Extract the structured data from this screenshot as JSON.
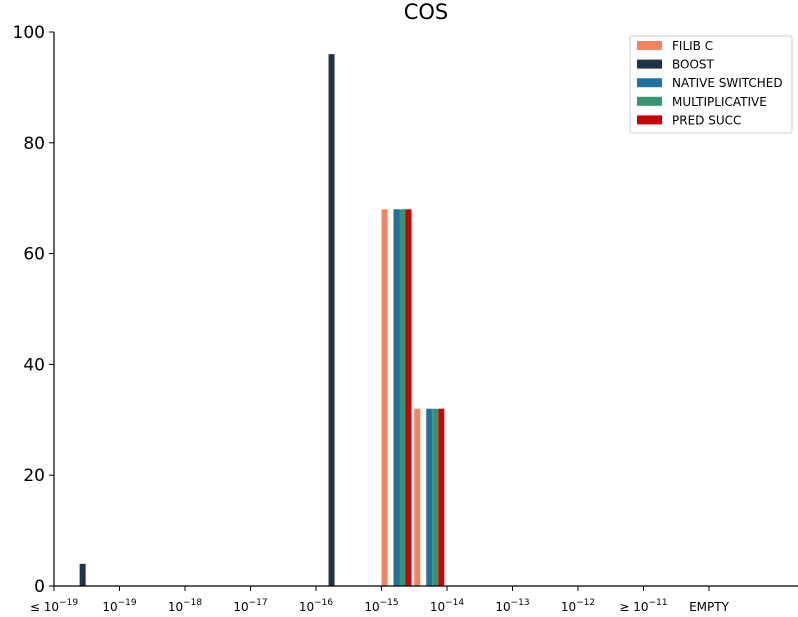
{
  "chart_data": {
    "type": "bar",
    "title": "COS",
    "xlabel": "",
    "ylabel": "",
    "ylim": [
      0,
      100
    ],
    "yticks": [
      0,
      20,
      40,
      60,
      80,
      100
    ],
    "categories": [
      {
        "prefix": "≤ 10",
        "sup": "−19"
      },
      {
        "prefix": "10",
        "sup": "−19"
      },
      {
        "prefix": "10",
        "sup": "−18"
      },
      {
        "prefix": "10",
        "sup": "−17"
      },
      {
        "prefix": "10",
        "sup": "−16"
      },
      {
        "prefix": "10",
        "sup": "−15"
      },
      {
        "prefix": "10",
        "sup": "−14"
      },
      {
        "prefix": "10",
        "sup": "−13"
      },
      {
        "prefix": "10",
        "sup": "−12"
      },
      {
        "prefix": "≥ 10",
        "sup": "−11"
      },
      {
        "prefix": "EMPTY",
        "sup": ""
      }
    ],
    "series": [
      {
        "name": "FILIB C",
        "color": "#f4845f",
        "points": [
          {
            "x": 5.0,
            "y": 68
          },
          {
            "x": 5.5,
            "y": 32
          }
        ]
      },
      {
        "name": "BOOST",
        "color": "#1d334a",
        "points": [
          {
            "x": 0.3,
            "y": 4
          },
          {
            "x": 4.1,
            "y": 96
          }
        ]
      },
      {
        "name": "NATIVE SWITCHED",
        "color": "#2271a6",
        "points": [
          {
            "x": 5.0,
            "y": 68
          },
          {
            "x": 5.5,
            "y": 32
          }
        ]
      },
      {
        "name": "MULTIPLICATIVE",
        "color": "#34956e",
        "points": [
          {
            "x": 5.0,
            "y": 68
          },
          {
            "x": 5.5,
            "y": 32
          }
        ]
      },
      {
        "name": "PRED SUCC",
        "color": "#cc0000",
        "points": [
          {
            "x": 5.0,
            "y": 68
          },
          {
            "x": 5.5,
            "y": 32
          }
        ]
      }
    ],
    "grid": false,
    "legend_position": "top-right"
  }
}
